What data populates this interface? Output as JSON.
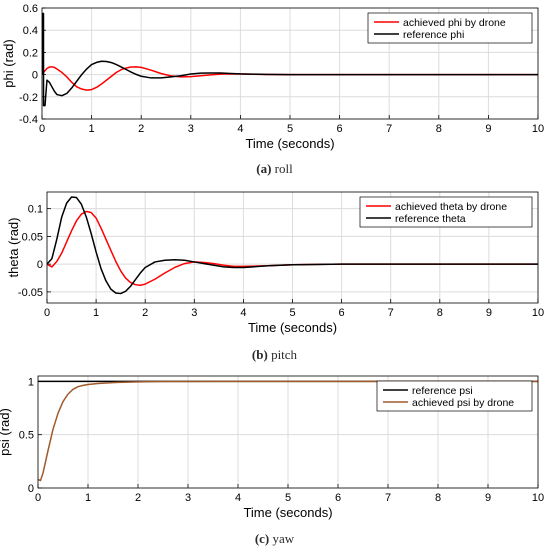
{
  "chart_data": [
    {
      "type": "line",
      "caption_tag": "(a)",
      "caption_text": "roll",
      "xlabel": "Time (seconds)",
      "ylabel": "phi (rad)",
      "xlim": [
        0,
        10
      ],
      "ylim": [
        -0.4,
        0.6
      ],
      "xticks": [
        "0",
        "1",
        "2",
        "3",
        "4",
        "5",
        "6",
        "7",
        "8",
        "9",
        "10"
      ],
      "yticks": [
        "-0.4",
        "-0.2",
        "0",
        "0.2",
        "0.4",
        "0.6"
      ],
      "grid": true,
      "legend_position": "top-right",
      "series": [
        {
          "name": "achieved phi by drone",
          "color": "#ff0000",
          "x": [
            0,
            0.05,
            0.1,
            0.15,
            0.2,
            0.25,
            0.3,
            0.4,
            0.5,
            0.6,
            0.7,
            0.8,
            0.9,
            1.0,
            1.1,
            1.2,
            1.3,
            1.4,
            1.5,
            1.6,
            1.7,
            1.8,
            1.9,
            2.0,
            2.2,
            2.4,
            2.6,
            2.8,
            3.0,
            3.2,
            3.4,
            3.6,
            3.8,
            4.0,
            4.5,
            5.0,
            6.0,
            7.0,
            8.0,
            9.0,
            10.0
          ],
          "y": [
            0,
            0.03,
            0.055,
            0.068,
            0.07,
            0.065,
            0.05,
            0.02,
            -0.02,
            -0.07,
            -0.11,
            -0.13,
            -0.14,
            -0.135,
            -0.115,
            -0.085,
            -0.05,
            -0.015,
            0.02,
            0.045,
            0.06,
            0.068,
            0.07,
            0.065,
            0.04,
            0.01,
            -0.012,
            -0.02,
            -0.018,
            -0.01,
            -0.002,
            0.004,
            0.006,
            0.005,
            0.001,
            0,
            0,
            0,
            0,
            0,
            0
          ]
        },
        {
          "name": "reference phi",
          "color": "#000000",
          "x": [
            0,
            0.001,
            0.03,
            0.031,
            0.06,
            0.1,
            0.15,
            0.2,
            0.25,
            0.3,
            0.4,
            0.5,
            0.6,
            0.7,
            0.8,
            0.9,
            1.0,
            1.1,
            1.2,
            1.3,
            1.4,
            1.5,
            1.6,
            1.7,
            1.8,
            1.9,
            2.0,
            2.2,
            2.4,
            2.6,
            2.8,
            3.0,
            3.2,
            3.4,
            3.6,
            3.8,
            4.0,
            4.5,
            5.0,
            6.0,
            7.0,
            8.0,
            9.0,
            10.0
          ],
          "y": [
            0,
            0.55,
            0.55,
            -0.28,
            -0.28,
            -0.05,
            -0.07,
            -0.11,
            -0.15,
            -0.18,
            -0.19,
            -0.17,
            -0.12,
            -0.06,
            0,
            0.05,
            0.09,
            0.11,
            0.12,
            0.118,
            0.108,
            0.09,
            0.068,
            0.045,
            0.022,
            0.002,
            -0.015,
            -0.03,
            -0.03,
            -0.02,
            -0.01,
            0.005,
            0.013,
            0.015,
            0.014,
            0.01,
            0.006,
            0.002,
            0,
            0,
            0,
            0,
            0,
            0
          ]
        }
      ]
    },
    {
      "type": "line",
      "caption_tag": "(b)",
      "caption_text": "pitch",
      "xlabel": "Time (seconds)",
      "ylabel": "theta (rad)",
      "xlim": [
        0,
        10
      ],
      "ylim": [
        -0.07,
        0.13
      ],
      "xticks": [
        "0",
        "1",
        "2",
        "3",
        "4",
        "5",
        "6",
        "7",
        "8",
        "9",
        "10"
      ],
      "yticks": [
        "-0.05",
        "0",
        "0.05",
        "0.1"
      ],
      "grid": true,
      "legend_position": "top-right",
      "series": [
        {
          "name": "achieved theta by drone",
          "color": "#ff0000",
          "x": [
            0,
            0.1,
            0.2,
            0.3,
            0.4,
            0.5,
            0.6,
            0.7,
            0.8,
            0.9,
            1.0,
            1.1,
            1.2,
            1.3,
            1.4,
            1.5,
            1.6,
            1.7,
            1.8,
            1.9,
            2.0,
            2.2,
            2.4,
            2.6,
            2.8,
            3.0,
            3.2,
            3.4,
            3.6,
            3.8,
            4.0,
            4.5,
            5.0,
            6.0,
            7.0,
            8.0,
            9.0,
            10.0
          ],
          "y": [
            0,
            -0.005,
            0.005,
            0.02,
            0.04,
            0.06,
            0.078,
            0.09,
            0.095,
            0.093,
            0.083,
            0.065,
            0.045,
            0.025,
            0.005,
            -0.012,
            -0.025,
            -0.033,
            -0.037,
            -0.038,
            -0.036,
            -0.027,
            -0.016,
            -0.006,
            0.001,
            0.004,
            0.003,
            0.001,
            -0.002,
            -0.004,
            -0.004,
            -0.003,
            -0.001,
            0,
            0,
            0,
            0,
            0
          ]
        },
        {
          "name": "reference theta",
          "color": "#000000",
          "x": [
            0,
            0.1,
            0.2,
            0.3,
            0.4,
            0.5,
            0.6,
            0.7,
            0.8,
            0.9,
            1.0,
            1.1,
            1.2,
            1.3,
            1.4,
            1.5,
            1.6,
            1.7,
            1.8,
            1.9,
            2.0,
            2.2,
            2.4,
            2.6,
            2.8,
            3.0,
            3.2,
            3.4,
            3.6,
            3.8,
            4.0,
            4.5,
            5.0,
            6.0,
            7.0,
            8.0,
            9.0,
            10.0
          ],
          "y": [
            0,
            0.01,
            0.045,
            0.085,
            0.11,
            0.121,
            0.12,
            0.108,
            0.085,
            0.055,
            0.022,
            -0.008,
            -0.03,
            -0.045,
            -0.052,
            -0.053,
            -0.049,
            -0.04,
            -0.028,
            -0.016,
            -0.006,
            0.004,
            0.007,
            0.008,
            0.007,
            0.004,
            0.001,
            -0.002,
            -0.005,
            -0.006,
            -0.006,
            -0.003,
            -0.001,
            0,
            0,
            0,
            0,
            0
          ]
        }
      ]
    },
    {
      "type": "line",
      "caption_tag": "(c)",
      "caption_text": "yaw",
      "xlabel": "Time (seconds)",
      "ylabel": "psi (rad)",
      "xlim": [
        0,
        10
      ],
      "ylim": [
        0,
        1.05
      ],
      "xticks": [
        "0",
        "1",
        "2",
        "3",
        "4",
        "5",
        "6",
        "7",
        "8",
        "9",
        "10"
      ],
      "yticks": [
        "0",
        "0.5",
        "1"
      ],
      "grid": true,
      "legend_position": "top-right",
      "series": [
        {
          "name": "reference psi",
          "color": "#000000",
          "x": [
            0,
            10
          ],
          "y": [
            1,
            1
          ]
        },
        {
          "name": "achieved psi by drone",
          "color": "#a05a2c",
          "x": [
            0,
            0.05,
            0.1,
            0.2,
            0.3,
            0.4,
            0.5,
            0.6,
            0.7,
            0.8,
            0.9,
            1.0,
            1.2,
            1.4,
            1.6,
            1.8,
            2.0,
            2.5,
            3.0,
            3.5,
            4.0,
            5.0,
            7.0,
            10.0
          ],
          "y": [
            0.08,
            0.07,
            0.14,
            0.35,
            0.55,
            0.7,
            0.81,
            0.88,
            0.925,
            0.95,
            0.962,
            0.97,
            0.98,
            0.985,
            0.99,
            0.993,
            0.995,
            0.998,
            0.999,
            1.0,
            1.0,
            1.0,
            1.0,
            1.0
          ]
        }
      ]
    }
  ]
}
